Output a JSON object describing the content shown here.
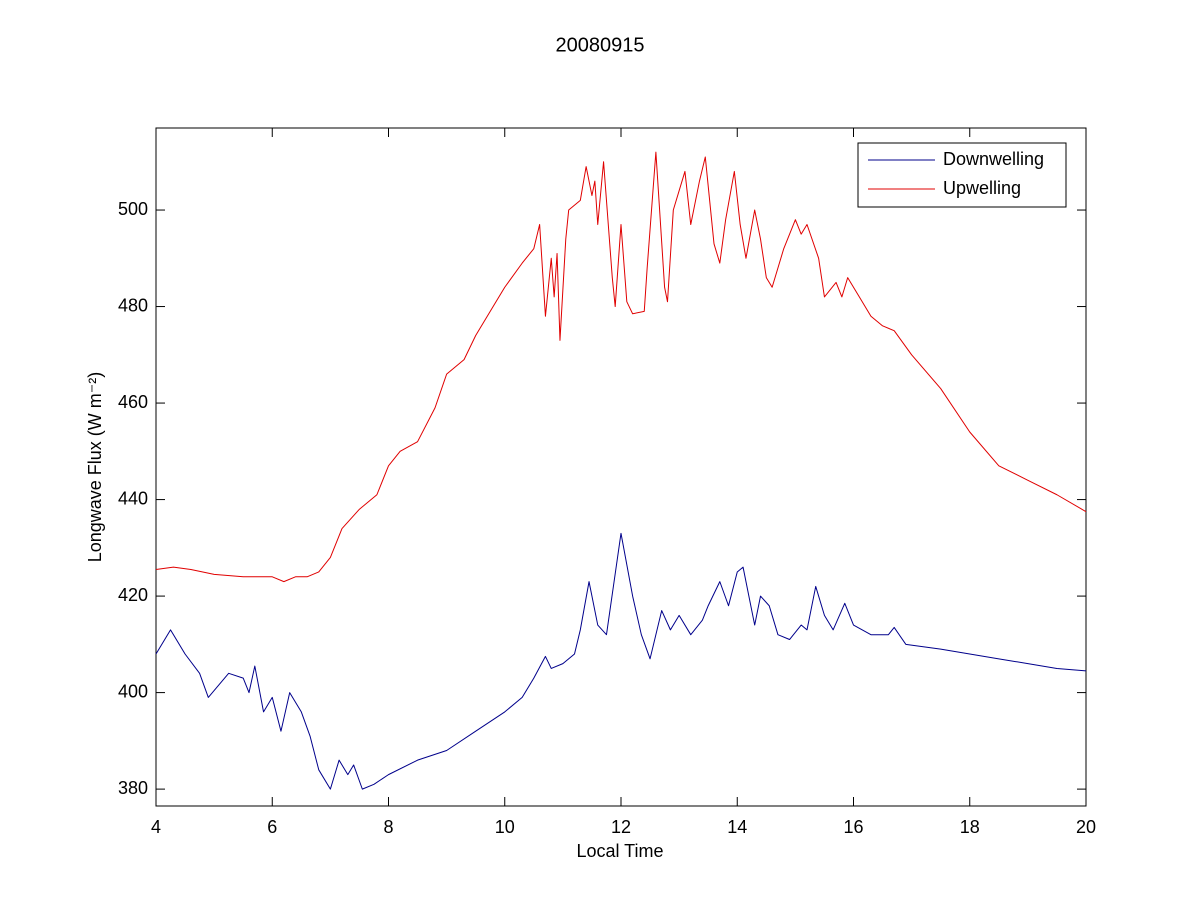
{
  "chart_data": {
    "type": "line",
    "title": "20080915",
    "xlabel": "Local Time",
    "ylabel": "Longwave Flux (W m⁻²)",
    "xlim": [
      4,
      20
    ],
    "ylim": [
      376.5,
      517
    ],
    "xticks": [
      4,
      6,
      8,
      10,
      12,
      14,
      16,
      18,
      20
    ],
    "yticks": [
      380,
      400,
      420,
      440,
      460,
      480,
      500
    ],
    "legend": "northeast",
    "grid": false,
    "series": [
      {
        "name": "Downwelling",
        "color": "#00008b",
        "x": [
          4.0,
          4.25,
          4.5,
          4.75,
          4.9,
          5.25,
          5.5,
          5.6,
          5.7,
          5.85,
          6.0,
          6.15,
          6.3,
          6.5,
          6.65,
          6.8,
          7.0,
          7.15,
          7.3,
          7.4,
          7.55,
          7.75,
          8.0,
          8.5,
          9.0,
          9.5,
          10.0,
          10.3,
          10.5,
          10.7,
          10.8,
          11.0,
          11.2,
          11.3,
          11.45,
          11.6,
          11.75,
          12.0,
          12.2,
          12.35,
          12.5,
          12.7,
          12.85,
          13.0,
          13.2,
          13.4,
          13.5,
          13.7,
          13.85,
          14.0,
          14.1,
          14.3,
          14.4,
          14.55,
          14.7,
          14.9,
          15.1,
          15.2,
          15.35,
          15.5,
          15.65,
          15.85,
          16.0,
          16.3,
          16.6,
          16.7,
          16.9,
          17.5,
          18.0,
          18.5,
          19.0,
          19.5,
          20.0
        ],
        "values": [
          408,
          413,
          408,
          404,
          399,
          404,
          403,
          400,
          405.5,
          396,
          399,
          392,
          400,
          396,
          391,
          384,
          380,
          386,
          383,
          385,
          380,
          381,
          383,
          386,
          388,
          392,
          396,
          399,
          403,
          407.5,
          405,
          406,
          408,
          413,
          423,
          414,
          412,
          433,
          420,
          412,
          407,
          417,
          413,
          416,
          412,
          415,
          418,
          423,
          418,
          425,
          426,
          414,
          420,
          418,
          412,
          411,
          414,
          413,
          422,
          416,
          413,
          418.5,
          414,
          412,
          412,
          413.5,
          410,
          409,
          408,
          407,
          406,
          405,
          404.5
        ]
      },
      {
        "name": "Upwelling",
        "color": "#e00000",
        "x": [
          4.0,
          4.3,
          4.6,
          5.0,
          5.5,
          6.0,
          6.2,
          6.4,
          6.6,
          6.8,
          7.0,
          7.2,
          7.5,
          7.8,
          8.0,
          8.2,
          8.5,
          8.8,
          9.0,
          9.3,
          9.5,
          9.8,
          10.0,
          10.3,
          10.5,
          10.6,
          10.7,
          10.8,
          10.85,
          10.9,
          10.95,
          11.05,
          11.1,
          11.3,
          11.4,
          11.5,
          11.55,
          11.6,
          11.7,
          11.85,
          11.9,
          12.0,
          12.1,
          12.2,
          12.4,
          12.45,
          12.6,
          12.75,
          12.8,
          12.9,
          13.1,
          13.2,
          13.35,
          13.45,
          13.6,
          13.7,
          13.8,
          13.95,
          14.05,
          14.15,
          14.3,
          14.4,
          14.5,
          14.6,
          14.8,
          15.0,
          15.1,
          15.2,
          15.4,
          15.5,
          15.7,
          15.8,
          15.9,
          16.1,
          16.3,
          16.5,
          16.7,
          17.0,
          17.5,
          18.0,
          18.5,
          19.0,
          19.5,
          20.0
        ],
        "values": [
          425.5,
          426,
          425.5,
          424.5,
          424,
          424,
          423,
          424,
          424,
          425,
          428,
          434,
          438,
          441,
          447,
          450,
          452,
          459,
          466,
          469,
          474,
          480,
          484,
          489,
          492,
          497,
          478,
          490,
          482,
          491,
          473,
          494,
          500,
          502,
          509,
          503,
          506,
          497,
          510,
          486,
          480,
          497,
          481,
          478.5,
          479,
          488,
          512,
          484,
          481,
          500,
          508,
          497,
          506,
          511,
          493,
          489,
          498,
          508,
          497,
          490,
          500,
          494,
          486,
          484,
          492,
          498,
          495,
          497,
          490,
          482,
          485,
          482,
          486,
          482,
          478,
          476,
          475,
          470,
          463,
          454,
          447,
          444,
          441,
          437.5
        ]
      }
    ]
  }
}
